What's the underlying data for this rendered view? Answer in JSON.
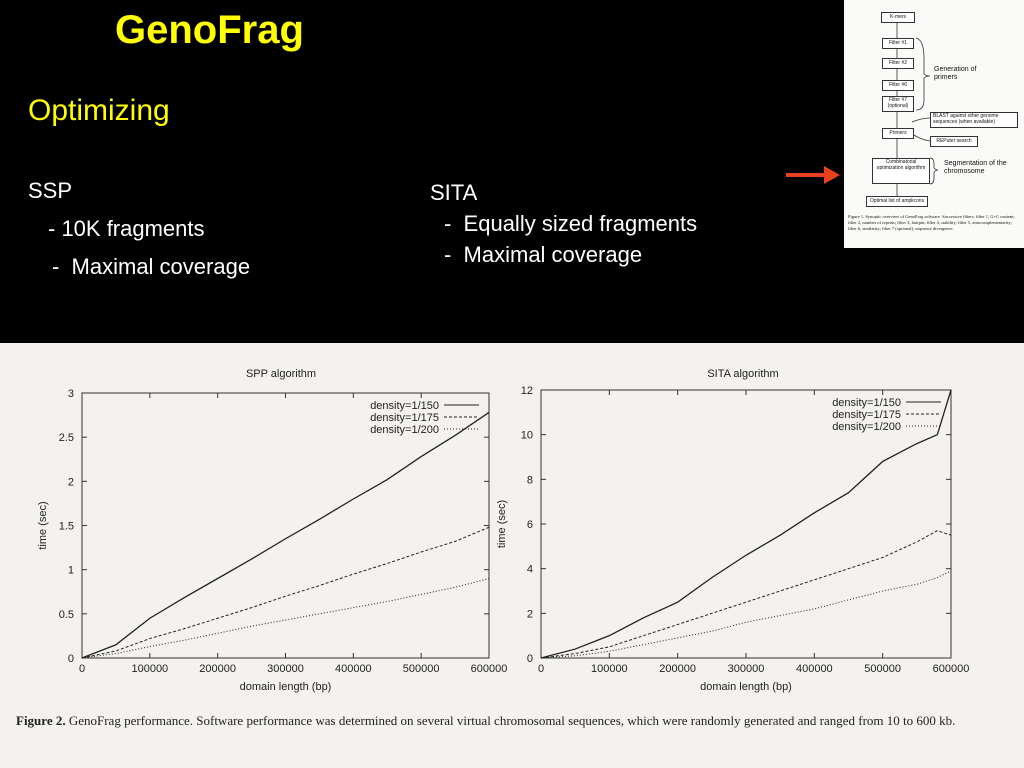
{
  "slide": {
    "title": "GenoFrag",
    "subtitle": "Optimizing",
    "ssp": {
      "heading": "SSP",
      "items": [
        "- 10K fragments",
        "-  Maximal coverage"
      ]
    },
    "sita": {
      "heading": "SITA",
      "items": [
        "-  Equally sized fragments",
        "-  Maximal coverage"
      ]
    }
  },
  "flowchart": {
    "kmers": "K-mers",
    "filters": [
      "Filter #1",
      "Filter #2",
      "Filter #6",
      "Filter #7 (optional)"
    ],
    "primers": "Primers",
    "generation_label": "Generation of primers",
    "blast": "BLAST against other genome sequences (when available)",
    "repeat": "REPuter search",
    "combo": "Combinatorial optimization algorithm",
    "segmentation_label": "Segmentation of the chromosome",
    "result": "Optimal list of amplicons",
    "caption": "Figure 1. Synoptic overview of GenoFrag software. Successive filters: filter 1, G+C content; filter 2, number of repeats; filter 3, hairpin; filter 4, stability; filter 5, autocomplementarity; filter 6, similarity; filter 7 (optional), sequence divergence.",
    "arrow_color": "#e8401c"
  },
  "figure_caption": {
    "label": "Figure 2.",
    "text": " GenoFrag performance. Software performance was determined on several virtual chromosomal sequences, which were randomly generated and ranged from 10 to 600 kb."
  },
  "chart_data": [
    {
      "type": "line",
      "title": "SPP algorithm",
      "xlabel": "domain length (bp)",
      "ylabel": "time (sec)",
      "xlim": [
        0,
        600000
      ],
      "ylim": [
        0,
        3
      ],
      "xticks": [
        0,
        100000,
        200000,
        300000,
        400000,
        500000,
        600000
      ],
      "yticks": [
        0,
        0.5,
        1,
        1.5,
        2,
        2.5,
        3
      ],
      "ytick_labels": [
        "0",
        "0.5",
        "1",
        "1.5",
        "2",
        "2.5",
        "3"
      ],
      "legend_position": "top-right",
      "x": [
        0,
        50000,
        100000,
        150000,
        200000,
        250000,
        300000,
        350000,
        400000,
        450000,
        500000,
        550000,
        600000
      ],
      "series": [
        {
          "name": "density=1/150",
          "style": "solid",
          "values": [
            0,
            0.15,
            0.45,
            0.68,
            0.9,
            1.12,
            1.35,
            1.57,
            1.8,
            2.02,
            2.28,
            2.52,
            2.78
          ]
        },
        {
          "name": "density=1/175",
          "style": "dashed",
          "values": [
            0,
            0.08,
            0.22,
            0.33,
            0.45,
            0.57,
            0.7,
            0.82,
            0.95,
            1.07,
            1.2,
            1.32,
            1.48
          ]
        },
        {
          "name": "density=1/200",
          "style": "dotted",
          "values": [
            0,
            0.05,
            0.13,
            0.2,
            0.28,
            0.36,
            0.43,
            0.5,
            0.57,
            0.64,
            0.72,
            0.8,
            0.9
          ]
        }
      ]
    },
    {
      "type": "line",
      "title": "SITA algorithm",
      "xlabel": "domain length (bp)",
      "ylabel": "time (sec)",
      "xlim": [
        0,
        600000
      ],
      "ylim": [
        0,
        12
      ],
      "xticks": [
        0,
        100000,
        200000,
        300000,
        400000,
        500000,
        600000
      ],
      "yticks": [
        0,
        2,
        4,
        6,
        8,
        10,
        12
      ],
      "ytick_labels": [
        "0",
        "2",
        "4",
        "6",
        "8",
        "10",
        "12"
      ],
      "legend_position": "top-right",
      "x": [
        0,
        50000,
        100000,
        150000,
        200000,
        250000,
        300000,
        350000,
        400000,
        450000,
        500000,
        550000,
        580000,
        600000
      ],
      "series": [
        {
          "name": "density=1/150",
          "style": "solid",
          "values": [
            0,
            0.4,
            1.0,
            1.8,
            2.5,
            3.6,
            4.6,
            5.5,
            6.5,
            7.4,
            8.8,
            9.6,
            10.0,
            12.0
          ]
        },
        {
          "name": "density=1/175",
          "style": "dashed",
          "values": [
            0,
            0.2,
            0.5,
            1.0,
            1.5,
            2.0,
            2.5,
            3.0,
            3.5,
            4.0,
            4.5,
            5.2,
            5.7,
            5.5
          ]
        },
        {
          "name": "density=1/200",
          "style": "dotted",
          "values": [
            0,
            0.1,
            0.3,
            0.6,
            0.9,
            1.2,
            1.6,
            1.9,
            2.2,
            2.6,
            3.0,
            3.3,
            3.6,
            3.9
          ]
        }
      ]
    }
  ]
}
